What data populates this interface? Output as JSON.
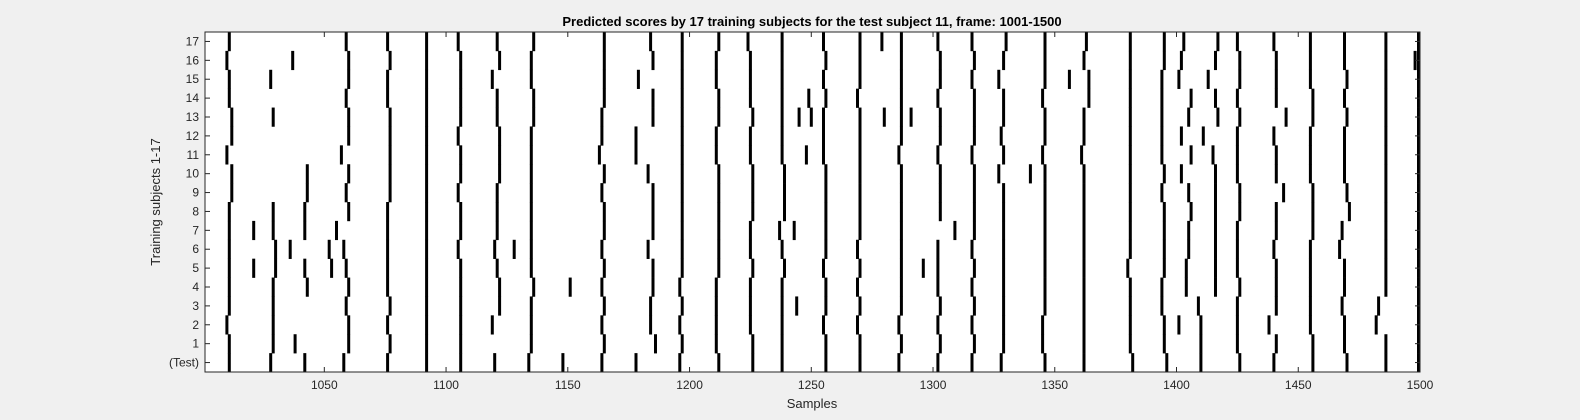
{
  "window": {
    "background": "#f0f0f0"
  },
  "chart_data": {
    "type": "heatmap",
    "title": "Predicted scores by 17 training subjects for the test subject 11, frame: 1001-1500",
    "xlabel": "Samples",
    "ylabel": "Training subjects 1-17",
    "xlim": [
      1001,
      1500
    ],
    "xticks": [
      1050,
      1100,
      1150,
      1200,
      1250,
      1300,
      1350,
      1400,
      1450,
      1500
    ],
    "yticklabels": [
      "(Test)",
      "1",
      "2",
      "3",
      "4",
      "5",
      "6",
      "7",
      "8",
      "9",
      "10",
      "11",
      "12",
      "13",
      "14",
      "15",
      "16",
      "17"
    ],
    "colors": {
      "background": "#ffffff",
      "mark": "#000000",
      "axis": "#262626"
    },
    "rows": [
      {
        "label": "(Test)",
        "events": [
          1011,
          1028,
          1042,
          1058,
          1076,
          1092,
          1106,
          1120,
          1134,
          1148,
          1164,
          1178,
          1196,
          1212,
          1226,
          1238,
          1256,
          1270,
          1286,
          1302,
          1316,
          1328,
          1346,
          1362,
          1382,
          1396,
          1410,
          1426,
          1440,
          1456,
          1470,
          1486,
          1500
        ]
      },
      {
        "label": "1",
        "events": [
          1011,
          1029,
          1038,
          1060,
          1077,
          1092,
          1106,
          1135,
          1165,
          1186,
          1197,
          1211,
          1226,
          1238,
          1256,
          1270,
          1287,
          1303,
          1317,
          1329,
          1345,
          1362,
          1381,
          1395,
          1410,
          1425,
          1441,
          1456,
          1469,
          1486,
          1500
        ]
      },
      {
        "label": "2",
        "events": [
          1010,
          1029,
          1060,
          1076,
          1092,
          1106,
          1119,
          1135,
          1164,
          1184,
          1196,
          1211,
          1225,
          1238,
          1255,
          1269,
          1286,
          1302,
          1316,
          1329,
          1345,
          1362,
          1381,
          1395,
          1401,
          1410,
          1425,
          1438,
          1455,
          1469,
          1482,
          1500
        ]
      },
      {
        "label": "3",
        "events": [
          1011,
          1029,
          1059,
          1077,
          1092,
          1106,
          1122,
          1135,
          1165,
          1184,
          1197,
          1211,
          1225,
          1238,
          1244,
          1256,
          1270,
          1287,
          1303,
          1317,
          1329,
          1346,
          1362,
          1381,
          1394,
          1409,
          1425,
          1441,
          1455,
          1468,
          1483,
          1500
        ]
      },
      {
        "label": "4",
        "events": [
          1011,
          1029,
          1043,
          1060,
          1076,
          1092,
          1106,
          1122,
          1136,
          1151,
          1164,
          1185,
          1196,
          1211,
          1225,
          1238,
          1256,
          1269,
          1287,
          1302,
          1316,
          1329,
          1346,
          1362,
          1381,
          1394,
          1404,
          1416,
          1426,
          1441,
          1455,
          1469,
          1486,
          1500
        ]
      },
      {
        "label": "5",
        "events": [
          1011,
          1021,
          1030,
          1042,
          1053,
          1059,
          1076,
          1092,
          1106,
          1121,
          1135,
          1165,
          1185,
          1197,
          1212,
          1226,
          1239,
          1255,
          1270,
          1287,
          1296,
          1302,
          1317,
          1329,
          1346,
          1362,
          1380,
          1395,
          1404,
          1416,
          1425,
          1441,
          1455,
          1469,
          1486,
          1500
        ]
      },
      {
        "label": "6",
        "events": [
          1011,
          1030,
          1036,
          1052,
          1058,
          1076,
          1092,
          1105,
          1120,
          1128,
          1135,
          1164,
          1183,
          1197,
          1212,
          1225,
          1238,
          1256,
          1269,
          1287,
          1302,
          1316,
          1329,
          1346,
          1362,
          1381,
          1395,
          1405,
          1416,
          1425,
          1440,
          1455,
          1467,
          1486,
          1500
        ]
      },
      {
        "label": "7",
        "events": [
          1011,
          1021,
          1029,
          1042,
          1055,
          1076,
          1092,
          1106,
          1121,
          1135,
          1165,
          1185,
          1197,
          1212,
          1225,
          1237,
          1243,
          1256,
          1270,
          1287,
          1309,
          1317,
          1329,
          1346,
          1362,
          1381,
          1395,
          1405,
          1416,
          1425,
          1441,
          1456,
          1468,
          1486,
          1500
        ]
      },
      {
        "label": "8",
        "events": [
          1011,
          1029,
          1042,
          1060,
          1076,
          1092,
          1106,
          1121,
          1135,
          1165,
          1185,
          1197,
          1212,
          1226,
          1239,
          1256,
          1270,
          1287,
          1303,
          1317,
          1329,
          1346,
          1362,
          1381,
          1395,
          1406,
          1416,
          1426,
          1441,
          1456,
          1471,
          1486,
          1500
        ]
      },
      {
        "label": "9",
        "events": [
          1012,
          1043,
          1059,
          1077,
          1092,
          1105,
          1121,
          1135,
          1164,
          1185,
          1197,
          1212,
          1226,
          1239,
          1256,
          1270,
          1287,
          1303,
          1317,
          1329,
          1346,
          1362,
          1381,
          1394,
          1405,
          1416,
          1426,
          1444,
          1456,
          1470,
          1486,
          1500
        ]
      },
      {
        "label": "10",
        "events": [
          1012,
          1043,
          1060,
          1077,
          1092,
          1106,
          1122,
          1135,
          1165,
          1183,
          1197,
          1212,
          1226,
          1239,
          1256,
          1270,
          1287,
          1303,
          1317,
          1327,
          1340,
          1346,
          1362,
          1381,
          1395,
          1402,
          1416,
          1425,
          1441,
          1455,
          1469,
          1486,
          1500
        ]
      },
      {
        "label": "11",
        "events": [
          1010,
          1057,
          1077,
          1092,
          1106,
          1122,
          1135,
          1163,
          1178,
          1197,
          1211,
          1225,
          1238,
          1248,
          1255,
          1270,
          1286,
          1302,
          1316,
          1329,
          1345,
          1361,
          1381,
          1394,
          1406,
          1415,
          1425,
          1441,
          1455,
          1469,
          1486,
          1500
        ]
      },
      {
        "label": "12",
        "events": [
          1012,
          1060,
          1077,
          1092,
          1105,
          1122,
          1135,
          1164,
          1178,
          1197,
          1211,
          1225,
          1238,
          1255,
          1270,
          1287,
          1303,
          1317,
          1328,
          1346,
          1362,
          1381,
          1394,
          1402,
          1411,
          1425,
          1440,
          1455,
          1469,
          1486,
          1500
        ]
      },
      {
        "label": "13",
        "events": [
          1012,
          1029,
          1060,
          1077,
          1092,
          1106,
          1121,
          1136,
          1164,
          1185,
          1197,
          1212,
          1226,
          1238,
          1245,
          1250,
          1255,
          1270,
          1280,
          1287,
          1291,
          1303,
          1317,
          1329,
          1346,
          1362,
          1381,
          1394,
          1405,
          1417,
          1426,
          1445,
          1456,
          1470,
          1486,
          1500
        ]
      },
      {
        "label": "14",
        "events": [
          1011,
          1059,
          1076,
          1092,
          1106,
          1121,
          1136,
          1165,
          1185,
          1197,
          1212,
          1225,
          1238,
          1249,
          1256,
          1269,
          1287,
          1302,
          1317,
          1329,
          1345,
          1364,
          1381,
          1394,
          1406,
          1416,
          1425,
          1441,
          1456,
          1469,
          1486,
          1500
        ]
      },
      {
        "label": "15",
        "events": [
          1011,
          1028,
          1060,
          1076,
          1092,
          1106,
          1119,
          1135,
          1165,
          1179,
          1197,
          1211,
          1225,
          1238,
          1255,
          1270,
          1287,
          1303,
          1316,
          1327,
          1346,
          1356,
          1364,
          1381,
          1394,
          1401,
          1413,
          1426,
          1441,
          1455,
          1470,
          1486,
          1500
        ]
      },
      {
        "label": "16",
        "events": [
          1010,
          1037,
          1060,
          1077,
          1092,
          1106,
          1122,
          1135,
          1165,
          1185,
          1197,
          1211,
          1225,
          1238,
          1256,
          1270,
          1287,
          1303,
          1317,
          1329,
          1346,
          1362,
          1381,
          1395,
          1402,
          1416,
          1426,
          1441,
          1455,
          1469,
          1486,
          1498,
          1500
        ]
      },
      {
        "label": "17",
        "events": [
          1011,
          1059,
          1076,
          1092,
          1105,
          1121,
          1136,
          1165,
          1184,
          1197,
          1212,
          1224,
          1238,
          1255,
          1270,
          1279,
          1287,
          1302,
          1316,
          1330,
          1346,
          1363,
          1381,
          1395,
          1403,
          1417,
          1425,
          1440,
          1455,
          1469,
          1486,
          1500
        ]
      }
    ]
  }
}
